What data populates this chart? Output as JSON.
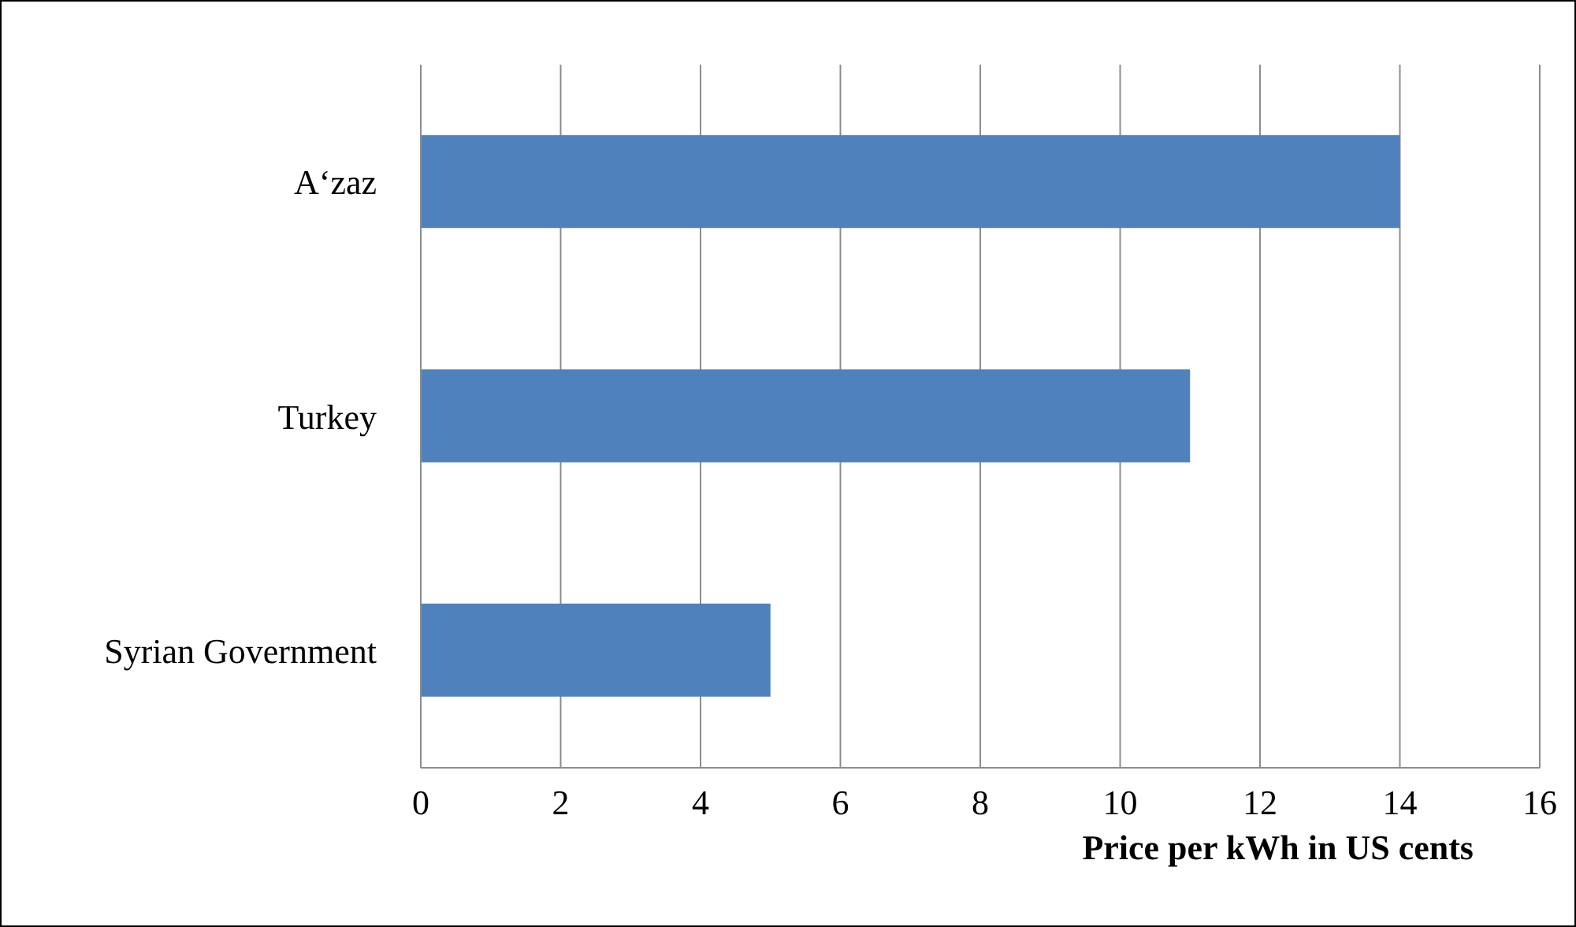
{
  "chart_data": {
    "type": "bar",
    "orientation": "horizontal",
    "categories": [
      "A‘zaz",
      "Turkey",
      "Syrian Government"
    ],
    "values": [
      14,
      11,
      5
    ],
    "color": "#4f81bd",
    "xlabel": "Price per kWh in US cents",
    "xlim": [
      0,
      16
    ],
    "xticks": [
      0,
      2,
      4,
      6,
      8,
      10,
      12,
      14,
      16
    ],
    "grid": "x"
  }
}
